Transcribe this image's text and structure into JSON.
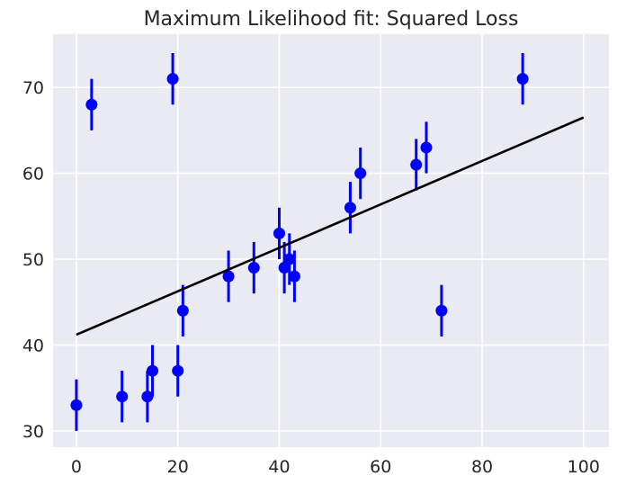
{
  "chart_data": {
    "type": "scatter",
    "title": "Maximum Likelihood fit: Squared Loss",
    "xlabel": "",
    "ylabel": "",
    "xlim": [
      -4.6,
      105
    ],
    "ylim": [
      28.1,
      76.2
    ],
    "grid": true,
    "xticks": [
      0,
      20,
      40,
      60,
      80,
      100
    ],
    "yticks": [
      30,
      40,
      50,
      60,
      70
    ],
    "series": [
      {
        "name": "data",
        "kind": "errorbar",
        "color": "#0000ff",
        "x": [
          0,
          3,
          9,
          14,
          15,
          19,
          20,
          21,
          30,
          35,
          40,
          41,
          42,
          43,
          54,
          56,
          67,
          69,
          72,
          88
        ],
        "y": [
          33,
          68,
          34,
          34,
          37,
          71,
          37,
          44,
          48,
          49,
          53,
          49,
          50,
          48,
          56,
          60,
          61,
          63,
          44,
          71
        ],
        "yerr": 3
      },
      {
        "name": "fit",
        "kind": "line",
        "color": "#000000",
        "x": [
          0,
          100
        ],
        "y": [
          41.2,
          66.5
        ]
      }
    ]
  }
}
